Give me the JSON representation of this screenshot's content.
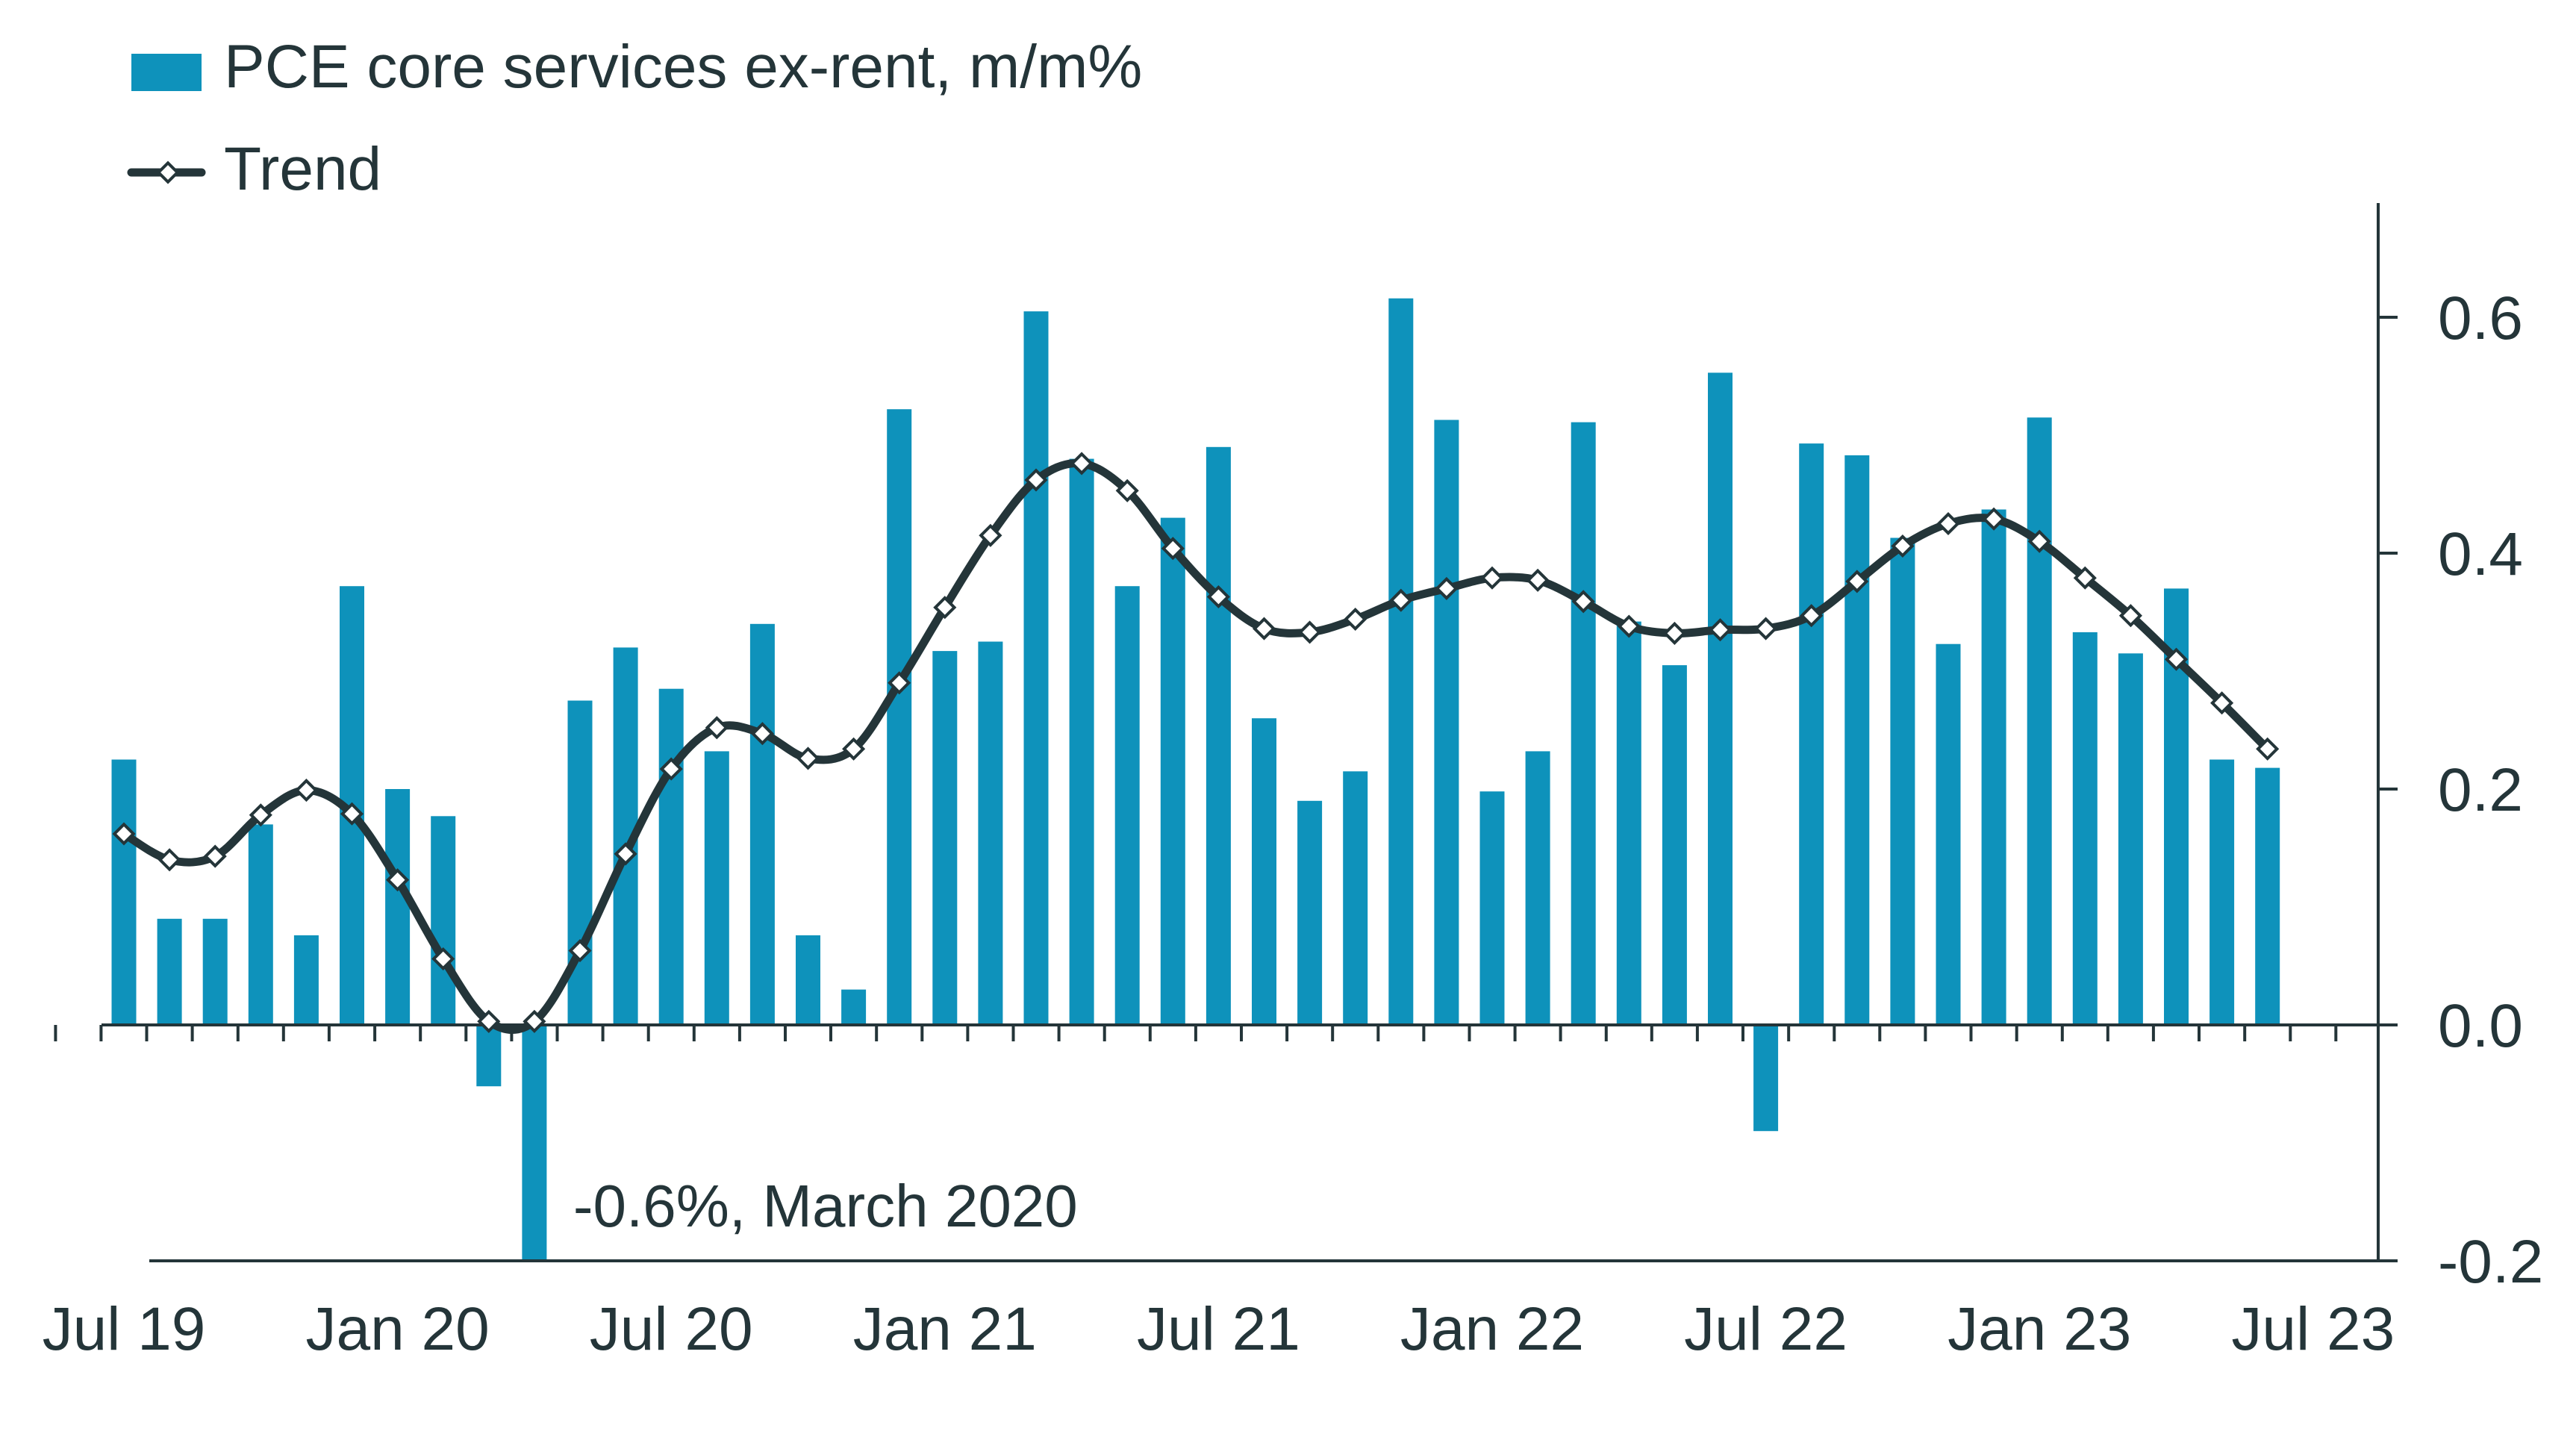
{
  "chart_data": {
    "type": "bar",
    "title": "",
    "xlabel": "",
    "ylabel": "",
    "ylim": [
      -0.2,
      0.7
    ],
    "y_axis_side": "right",
    "y_ticks": [
      "0.6",
      "0.4",
      "0.2",
      "0.0",
      "-0.2"
    ],
    "y_tick_values": [
      0.6,
      0.4,
      0.2,
      0.0,
      -0.2
    ],
    "x_tick_labels": [
      "Jul 19",
      "Jan 20",
      "Jul 20",
      "Jan 21",
      "Jul 21",
      "Jan 22",
      "Jul 22",
      "Jan 23",
      "Jul 23"
    ],
    "x_tick_month_index": [
      0,
      6,
      12,
      18,
      24,
      30,
      36,
      42,
      48
    ],
    "categories": [
      "Jul 19",
      "Aug 19",
      "Sep 19",
      "Oct 19",
      "Nov 19",
      "Dec 19",
      "Jan 20",
      "Feb 20",
      "Mar 20",
      "Apr 20",
      "May 20",
      "Jun 20",
      "Jul 20",
      "Aug 20",
      "Sep 20",
      "Oct 20",
      "Nov 20",
      "Dec 20",
      "Jan 21",
      "Feb 21",
      "Mar 21",
      "Apr 21",
      "May 21",
      "Jun 21",
      "Jul 21",
      "Aug 21",
      "Sep 21",
      "Oct 21",
      "Nov 21",
      "Dec 21",
      "Jan 22",
      "Feb 22",
      "Mar 22",
      "Apr 22",
      "May 22",
      "Jun 22",
      "Jul 22",
      "Aug 22",
      "Sep 22",
      "Oct 22",
      "Nov 22",
      "Dec 22",
      "Jan 23",
      "Feb 23",
      "Mar 23",
      "Apr 23",
      "May 23",
      "Jun 23"
    ],
    "legend": {
      "placement": "top-left"
    },
    "series": [
      {
        "name": "PCE core services ex-rent, m/m%",
        "type": "bar",
        "color": "#0e92bb",
        "values": [
          0.225,
          0.09,
          0.09,
          0.17,
          0.076,
          0.372,
          0.2,
          0.177,
          -0.052,
          -0.2,
          0.275,
          0.32,
          0.285,
          0.232,
          0.34,
          0.076,
          0.03,
          0.522,
          0.317,
          0.325,
          0.605,
          0.48,
          0.372,
          0.43,
          0.49,
          0.26,
          0.19,
          0.215,
          0.616,
          0.513,
          0.198,
          0.232,
          0.511,
          0.342,
          0.305,
          0.553,
          -0.09,
          0.493,
          0.483,
          0.413,
          0.323,
          0.437,
          0.515,
          0.333,
          0.315,
          0.37,
          0.225,
          0.218
        ]
      },
      {
        "name": "Trend",
        "type": "line",
        "color": "#243539",
        "values": [
          0.162,
          0.14,
          0.143,
          0.178,
          0.199,
          0.179,
          0.123,
          0.056,
          0.003,
          0.003,
          0.063,
          0.145,
          0.217,
          0.252,
          0.247,
          0.226,
          0.234,
          0.29,
          0.354,
          0.415,
          0.462,
          0.476,
          0.453,
          0.404,
          0.363,
          0.336,
          0.333,
          0.344,
          0.36,
          0.37,
          0.379,
          0.377,
          0.359,
          0.338,
          0.332,
          0.335,
          0.336,
          0.347,
          0.376,
          0.406,
          0.425,
          0.429,
          0.41,
          0.379,
          0.347,
          0.31,
          0.273,
          0.234
        ]
      }
    ],
    "annotations": [
      {
        "text": "-0.6%, March 2020",
        "month_index": 9
      }
    ]
  }
}
